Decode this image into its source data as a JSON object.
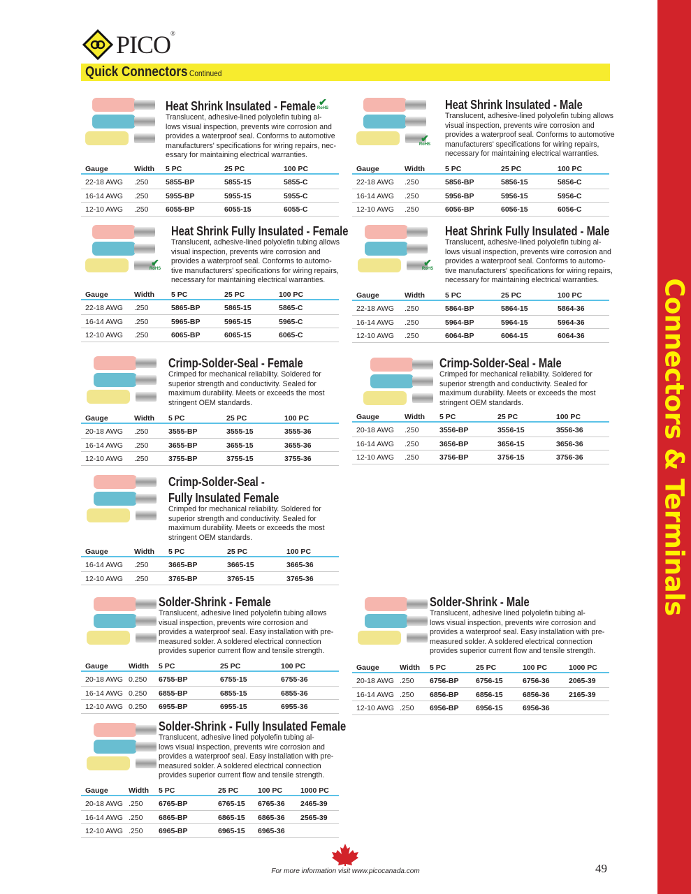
{
  "logo": {
    "text": "PICO",
    "reg": "®"
  },
  "header": {
    "title": "Quick Connectors",
    "subtitle": "Continued"
  },
  "sidebar": {
    "label": "Connectors & Terminals"
  },
  "rohs_label": "RoHS",
  "colors": {
    "header_bar": "#f7ec2e",
    "sidebar": "#d2232a",
    "sidebar_text": "#fff200",
    "table_rule": "#5bc2e7"
  },
  "products": [
    {
      "title": "Heat Shrink Insulated - Female",
      "rohs": true,
      "desc": [
        "Translucent, adhesive-lined polyolefin tubing al-",
        "lows visual inspection, prevents wire corrosion and",
        "provides a waterproof seal. Conforms to automotive",
        "manufacturers' specifications for wiring repairs, nec-",
        "essary for maintaining electrical warranties."
      ],
      "columns": [
        "Gauge",
        "Width",
        "5 PC",
        "25 PC",
        "100 PC"
      ],
      "rows": [
        [
          "22-18 AWG",
          ".250",
          "5855-BP",
          "5855-15",
          "5855-C"
        ],
        [
          "16-14 AWG",
          ".250",
          "5955-BP",
          "5955-15",
          "5955-C"
        ],
        [
          "12-10 AWG",
          ".250",
          "6055-BP",
          "6055-15",
          "6055-C"
        ]
      ]
    },
    {
      "title": "Heat Shrink Insulated - Male",
      "rohs": true,
      "desc": [
        "Translucent, adhesive-lined polyolefin tubing allows",
        "visual inspection, prevents wire corrosion and",
        "provides a waterproof seal. Conforms to automotive",
        "manufacturers' specifications for wiring repairs,",
        "necessary for maintaining electrical warranties."
      ],
      "columns": [
        "Gauge",
        "Width",
        "5 PC",
        "25 PC",
        "100 PC"
      ],
      "rows": [
        [
          "22-18 AWG",
          ".250",
          "5856-BP",
          "5856-15",
          "5856-C"
        ],
        [
          "16-14 AWG",
          ".250",
          "5956-BP",
          "5956-15",
          "5956-C"
        ],
        [
          "12-10 AWG",
          ".250",
          "6056-BP",
          "6056-15",
          "6056-C"
        ]
      ]
    },
    {
      "title": "Heat Shrink Fully Insulated - Female",
      "rohs": true,
      "desc": [
        "Translucent, adhesive-lined polyolefin tubing allows",
        "visual inspection, prevents wire corrosion and",
        "provides a waterproof seal. Conforms to automo-",
        "tive manufacturers' specifications for wiring repairs,",
        "necessary for maintaining electrical warranties."
      ],
      "columns": [
        "Gauge",
        "Width",
        "5 PC",
        "25 PC",
        "100 PC"
      ],
      "rows": [
        [
          "22-18 AWG",
          ".250",
          "5865-BP",
          "5865-15",
          "5865-C"
        ],
        [
          "16-14 AWG",
          ".250",
          "5965-BP",
          "5965-15",
          "5965-C"
        ],
        [
          "12-10 AWG",
          ".250",
          "6065-BP",
          "6065-15",
          "6065-C"
        ]
      ]
    },
    {
      "title": "Heat Shrink Fully Insulated - Male",
      "rohs": true,
      "desc": [
        "Translucent, adhesive-lined polyolefin tubing al-",
        "lows visual inspection, prevents wire corrosion and",
        "provides a waterproof seal. Conforms to automo-",
        "tive manufacturers' specifications for wiring repairs,",
        "necessary for maintaining electrical warranties."
      ],
      "columns": [
        "Gauge",
        "Width",
        "5 PC",
        "25 PC",
        "100 PC"
      ],
      "rows": [
        [
          "22-18 AWG",
          ".250",
          "5864-BP",
          "5864-15",
          "5864-36"
        ],
        [
          "16-14 AWG",
          ".250",
          "5964-BP",
          "5964-15",
          "5964-36"
        ],
        [
          "12-10 AWG",
          ".250",
          "6064-BP",
          "6064-15",
          "6064-36"
        ]
      ]
    },
    {
      "title": "Crimp-Solder-Seal - Female",
      "rohs": false,
      "desc": [
        "Crimped for mechanical reliability. Soldered for",
        "superior strength and conductivity. Sealed for",
        "maximum durability. Meets or exceeds the most",
        "stringent OEM standards."
      ],
      "columns": [
        "Gauge",
        "Width",
        "5 PC",
        "25 PC",
        "100 PC"
      ],
      "rows": [
        [
          "20-18 AWG",
          ".250",
          "3555-BP",
          "3555-15",
          "3555-36"
        ],
        [
          "16-14 AWG",
          ".250",
          "3655-BP",
          "3655-15",
          "3655-36"
        ],
        [
          "12-10 AWG",
          ".250",
          "3755-BP",
          "3755-15",
          "3755-36"
        ]
      ]
    },
    {
      "title": "Crimp-Solder-Seal - Male",
      "rohs": false,
      "desc": [
        "Crimped for mechanical reliability. Soldered for",
        "superior strength and conductivity. Sealed for",
        "maximum durability. Meets or exceeds the most",
        "stringent OEM standards."
      ],
      "columns": [
        "Gauge",
        "Width",
        "5 PC",
        "25 PC",
        "100 PC"
      ],
      "rows": [
        [
          "20-18 AWG",
          ".250",
          "3556-BP",
          "3556-15",
          "3556-36"
        ],
        [
          "16-14 AWG",
          ".250",
          "3656-BP",
          "3656-15",
          "3656-36"
        ],
        [
          "12-10 AWG",
          ".250",
          "3756-BP",
          "3756-15",
          "3756-36"
        ]
      ]
    },
    {
      "title": "Crimp-Solder-Seal -",
      "title2": "Fully Insulated Female",
      "rohs": false,
      "desc": [
        "Crimped for mechanical reliability. Soldered for",
        "superior strength and conductivity. Sealed for",
        "maximum durability. Meets or exceeds the most",
        "stringent OEM standards."
      ],
      "columns": [
        "Gauge",
        "Width",
        "5 PC",
        "25 PC",
        "100 PC"
      ],
      "rows": [
        [
          "16-14 AWG",
          ".250",
          "3665-BP",
          "3665-15",
          "3665-36"
        ],
        [
          "12-10 AWG",
          ".250",
          "3765-BP",
          "3765-15",
          "3765-36"
        ]
      ]
    },
    {
      "title": "Solder-Shrink - Female",
      "rohs": false,
      "desc": [
        "Translucent, adhesive lined polyolefin tubing allows",
        "visual inspection, prevents wire corrosion and",
        "provides a waterproof seal. Easy installation with pre-",
        "measured solder. A soldered electrical connection",
        "provides superior current flow and tensile strength."
      ],
      "columns": [
        "Gauge",
        "Width",
        "5 PC",
        "25 PC",
        "100 PC"
      ],
      "rows": [
        [
          "20-18 AWG",
          "0.250",
          "6755-BP",
          "6755-15",
          "6755-36"
        ],
        [
          "16-14 AWG",
          "0.250",
          "6855-BP",
          "6855-15",
          "6855-36"
        ],
        [
          "12-10 AWG",
          "0.250",
          "6955-BP",
          "6955-15",
          "6955-36"
        ]
      ]
    },
    {
      "title": "Solder-Shrink - Male",
      "rohs": false,
      "desc": [
        "Translucent, adhesive lined polyolefin tubing al-",
        "lows visual inspection, prevents wire corrosion and",
        "provides a waterproof seal. Easy installation with pre-",
        "measured solder. A soldered electrical connection",
        "provides superior current flow and tensile strength."
      ],
      "columns": [
        "Gauge",
        "Width",
        "5 PC",
        "25 PC",
        "100 PC",
        "1000 PC"
      ],
      "rows": [
        [
          "20-18 AWG",
          ".250",
          "6756-BP",
          "6756-15",
          "6756-36",
          "2065-39"
        ],
        [
          "16-14 AWG",
          ".250",
          "6856-BP",
          "6856-15",
          "6856-36",
          "2165-39"
        ],
        [
          "12-10 AWG",
          ".250",
          "6956-BP",
          "6956-15",
          "6956-36",
          ""
        ]
      ]
    },
    {
      "title": "Solder-Shrink - Fully Insulated Female",
      "rohs": false,
      "desc": [
        "Translucent, adhesive lined polyolefin tubing al-",
        "lows visual inspection, prevents wire corrosion and",
        "provides a waterproof seal. Easy installation with pre-",
        "measured solder. A soldered electrical connection",
        "provides superior current flow and tensile strength."
      ],
      "columns": [
        "Gauge",
        "Width",
        "5 PC",
        "25 PC",
        "100 PC",
        "1000 PC"
      ],
      "rows": [
        [
          "20-18 AWG",
          ".250",
          "6765-BP",
          "6765-15",
          "6765-36",
          "2465-39"
        ],
        [
          "16-14 AWG",
          ".250",
          "6865-BP",
          "6865-15",
          "6865-36",
          "2565-39"
        ],
        [
          "12-10 AWG",
          ".250",
          "6965-BP",
          "6965-15",
          "6965-36",
          ""
        ]
      ]
    }
  ],
  "footer": {
    "text": "For more information visit www.picocanada.com",
    "page_number": "49"
  }
}
